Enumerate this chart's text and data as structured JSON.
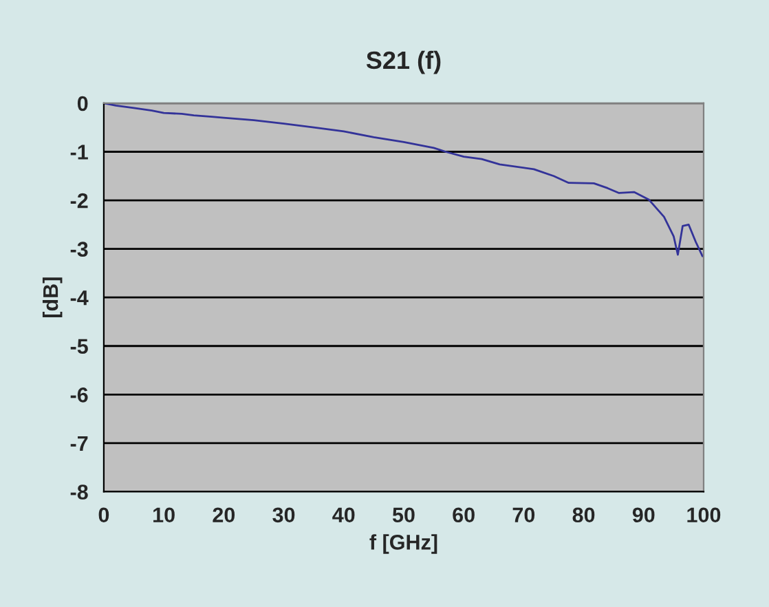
{
  "chart_data": {
    "type": "line",
    "title": "S21 (f)",
    "xlabel": "f [GHz]",
    "ylabel": "[dB]",
    "xlim": [
      0,
      100
    ],
    "xticks": [
      0,
      10,
      20,
      30,
      40,
      50,
      60,
      70,
      80,
      90,
      100
    ],
    "ylim": [
      -8,
      0
    ],
    "yticks": [
      -8,
      -7,
      -6,
      -5,
      -4,
      -3,
      -2,
      -1,
      0
    ],
    "grid": "y",
    "legend": false,
    "series": [
      {
        "color": "#333399",
        "x": [
          0,
          2,
          5,
          8,
          10,
          13,
          15,
          18,
          20,
          25,
          30,
          35,
          40,
          45,
          50,
          55,
          57,
          60,
          63,
          66,
          71.7,
          75,
          77.5,
          81.7,
          84,
          85.9,
          88.4,
          90.9,
          93.4,
          95,
          95.7,
          96.5,
          97.5,
          98.7,
          99.8
        ],
        "values": [
          0,
          -0.05,
          -0.1,
          -0.15,
          -0.2,
          -0.22,
          -0.25,
          -0.28,
          -0.3,
          -0.35,
          -0.42,
          -0.5,
          -0.58,
          -0.7,
          -0.8,
          -0.92,
          -1.0,
          -1.1,
          -1.15,
          -1.26,
          -1.36,
          -1.5,
          -1.64,
          -1.65,
          -1.75,
          -1.85,
          -1.83,
          -1.99,
          -2.34,
          -2.74,
          -3.12,
          -2.53,
          -2.5,
          -2.86,
          -3.15
        ]
      }
    ]
  }
}
